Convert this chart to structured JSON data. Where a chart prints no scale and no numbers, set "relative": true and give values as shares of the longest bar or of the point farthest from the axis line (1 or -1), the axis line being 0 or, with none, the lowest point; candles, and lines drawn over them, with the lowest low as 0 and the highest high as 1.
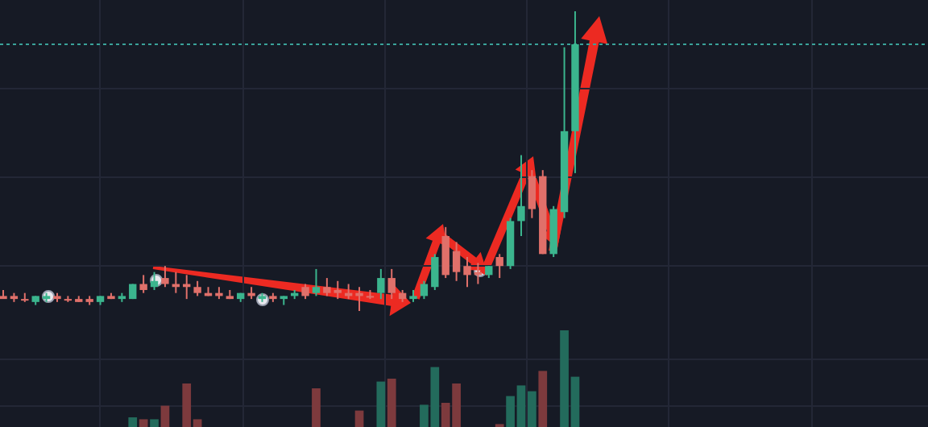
{
  "chart_data": [
    {
      "type": "candlestick",
      "relative": true,
      "grid": true,
      "categories": [
        null,
        null,
        null,
        null,
        null,
        null,
        null,
        null,
        null,
        null,
        null,
        null,
        null,
        null,
        null,
        null,
        null,
        null,
        null,
        null,
        null,
        null,
        null,
        null,
        null,
        null,
        null,
        null,
        null,
        null,
        null,
        null,
        null,
        null,
        null,
        null,
        null,
        null,
        null,
        null,
        null,
        null,
        null,
        null,
        null,
        null,
        null,
        null,
        null,
        null,
        null,
        null,
        null,
        null
      ],
      "ohlc": [
        [
          0.05,
          0.07,
          0.04,
          0.04
        ],
        [
          0.05,
          0.06,
          0.03,
          0.04
        ],
        [
          0.04,
          0.06,
          0.03,
          0.04
        ],
        [
          0.03,
          0.05,
          0.02,
          0.05
        ],
        [
          0.04,
          0.06,
          0.03,
          0.05
        ],
        [
          0.05,
          0.06,
          0.03,
          0.04
        ],
        [
          0.04,
          0.05,
          0.03,
          0.04
        ],
        [
          0.04,
          0.05,
          0.03,
          0.03
        ],
        [
          0.04,
          0.05,
          0.02,
          0.03
        ],
        [
          0.03,
          0.05,
          0.02,
          0.05
        ],
        [
          0.05,
          0.06,
          0.04,
          0.04
        ],
        [
          0.04,
          0.06,
          0.03,
          0.05
        ],
        [
          0.04,
          0.09,
          0.04,
          0.09
        ],
        [
          0.09,
          0.12,
          0.06,
          0.07
        ],
        [
          0.08,
          0.13,
          0.07,
          0.1
        ],
        [
          0.11,
          0.15,
          0.08,
          0.09
        ],
        [
          0.09,
          0.13,
          0.06,
          0.08
        ],
        [
          0.09,
          0.12,
          0.04,
          0.08
        ],
        [
          0.08,
          0.1,
          0.05,
          0.06
        ],
        [
          0.06,
          0.08,
          0.05,
          0.05
        ],
        [
          0.06,
          0.08,
          0.04,
          0.05
        ],
        [
          0.05,
          0.07,
          0.04,
          0.04
        ],
        [
          0.04,
          0.06,
          0.03,
          0.06
        ],
        [
          0.06,
          0.08,
          0.04,
          0.05
        ],
        [
          0.04,
          0.06,
          0.03,
          0.05
        ],
        [
          0.05,
          0.06,
          0.03,
          0.04
        ],
        [
          0.04,
          0.05,
          0.02,
          0.05
        ],
        [
          0.05,
          0.07,
          0.04,
          0.06
        ],
        [
          0.08,
          0.09,
          0.04,
          0.05
        ],
        [
          0.06,
          0.14,
          0.05,
          0.08
        ],
        [
          0.08,
          0.11,
          0.05,
          0.06
        ],
        [
          0.07,
          0.1,
          0.04,
          0.06
        ],
        [
          0.06,
          0.09,
          0.04,
          0.05
        ],
        [
          0.06,
          0.08,
          0,
          0.05
        ],
        [
          0.05,
          0.07,
          0.04,
          0.05
        ],
        [
          0.06,
          0.14,
          0.04,
          0.11
        ],
        [
          0.11,
          0.14,
          0.04,
          0.06
        ],
        [
          0.06,
          0.07,
          0.03,
          0.04
        ],
        [
          0.04,
          0.07,
          0.03,
          0.05
        ],
        [
          0.05,
          0.1,
          0.04,
          0.09
        ],
        [
          0.08,
          0.19,
          0.07,
          0.18
        ],
        [
          0.25,
          0.28,
          0.11,
          0.12
        ],
        [
          0.2,
          0.23,
          0.1,
          0.13
        ],
        [
          0.15,
          0.18,
          0.08,
          0.12
        ],
        [
          0.13,
          0.16,
          0.09,
          0.12
        ],
        [
          0.12,
          0.15,
          0.11,
          0.15
        ],
        [
          0.18,
          0.19,
          0.11,
          0.15
        ],
        [
          0.15,
          0.31,
          0.14,
          0.3
        ],
        [
          0.3,
          0.52,
          0.25,
          0.35
        ],
        [
          0.45,
          0.47,
          0.31,
          0.34
        ],
        [
          0.45,
          0.47,
          0.19,
          0.19
        ],
        [
          0.19,
          0.35,
          0.18,
          0.34
        ],
        [
          0.33,
          0.88,
          0.31,
          0.6
        ],
        [
          0.6,
          1,
          0.46,
          0.89
        ]
      ],
      "colors": [
        "#e0706a",
        "#e0706a",
        "#e0706a",
        "#3bb58e",
        "#3bb58e",
        "#e0706a",
        "#e0706a",
        "#e0706a",
        "#e0706a",
        "#3bb58e",
        "#e0706a",
        "#3bb58e",
        "#3bb58e",
        "#e0706a",
        "#3bb58e",
        "#e0706a",
        "#e0706a",
        "#e0706a",
        "#e0706a",
        "#e0706a",
        "#e0706a",
        "#e0706a",
        "#3bb58e",
        "#e0706a",
        "#3bb58e",
        "#e0706a",
        "#3bb58e",
        "#3bb58e",
        "#e0706a",
        "#3bb58e",
        "#e0706a",
        "#e0706a",
        "#e0706a",
        "#e0706a",
        "#e0706a",
        "#3bb58e",
        "#e0706a",
        "#e0706a",
        "#3bb58e",
        "#3bb58e",
        "#3bb58e",
        "#e0706a",
        "#e0706a",
        "#e0706a",
        "#e0706a",
        "#3bb58e",
        "#e0706a",
        "#3bb58e",
        "#3bb58e",
        "#e0706a",
        "#e0706a",
        "#3bb58e",
        "#3bb58e",
        "#3bb58e"
      ],
      "ref_lines": [
        {
          "axis": "y",
          "value": 0.89,
          "color": "#3aa39a",
          "line_style": "dashed"
        }
      ]
    },
    {
      "type": "bar",
      "relative": true,
      "categories": [
        null,
        null,
        null,
        null,
        null,
        null,
        null,
        null,
        null,
        null,
        null,
        null,
        null,
        null,
        null,
        null,
        null,
        null,
        null,
        null,
        null,
        null,
        null,
        null,
        null,
        null,
        null,
        null,
        null,
        null,
        null,
        null,
        null,
        null,
        null,
        null,
        null,
        null,
        null,
        null,
        null,
        null,
        null,
        null,
        null,
        null,
        null,
        null,
        null,
        null,
        null,
        null,
        null,
        null
      ],
      "values": [
        null,
        null,
        null,
        null,
        null,
        null,
        null,
        null,
        null,
        null,
        null,
        null,
        0.1,
        0.08,
        0.08,
        0.22,
        null,
        0.45,
        0.08,
        null,
        null,
        null,
        null,
        null,
        null,
        null,
        null,
        null,
        null,
        0.4,
        null,
        null,
        null,
        0.17,
        null,
        0.47,
        0.5,
        null,
        null,
        0.23,
        0.62,
        0.25,
        0.45,
        null,
        null,
        null,
        0.03,
        0.32,
        0.43,
        0.37,
        0.58,
        null,
        1,
        0.52
      ],
      "colors": [
        null,
        null,
        null,
        null,
        null,
        null,
        null,
        null,
        null,
        null,
        null,
        null,
        "#236b5c",
        "#7d3a3d",
        "#236b5c",
        "#7d3a3d",
        null,
        "#7d3a3d",
        "#7d3a3d",
        null,
        null,
        null,
        null,
        null,
        null,
        null,
        null,
        null,
        null,
        "#7d3a3d",
        null,
        null,
        null,
        "#7d3a3d",
        null,
        "#236b5c",
        "#7d3a3d",
        null,
        null,
        "#236b5c",
        "#236b5c",
        "#7d3a3d",
        "#7d3a3d",
        null,
        null,
        null,
        "#7d3a3d",
        "#236b5c",
        "#236b5c",
        "#236b5c",
        "#7d3a3d",
        null,
        "#236b5c",
        "#236b5c"
      ]
    }
  ]
}
